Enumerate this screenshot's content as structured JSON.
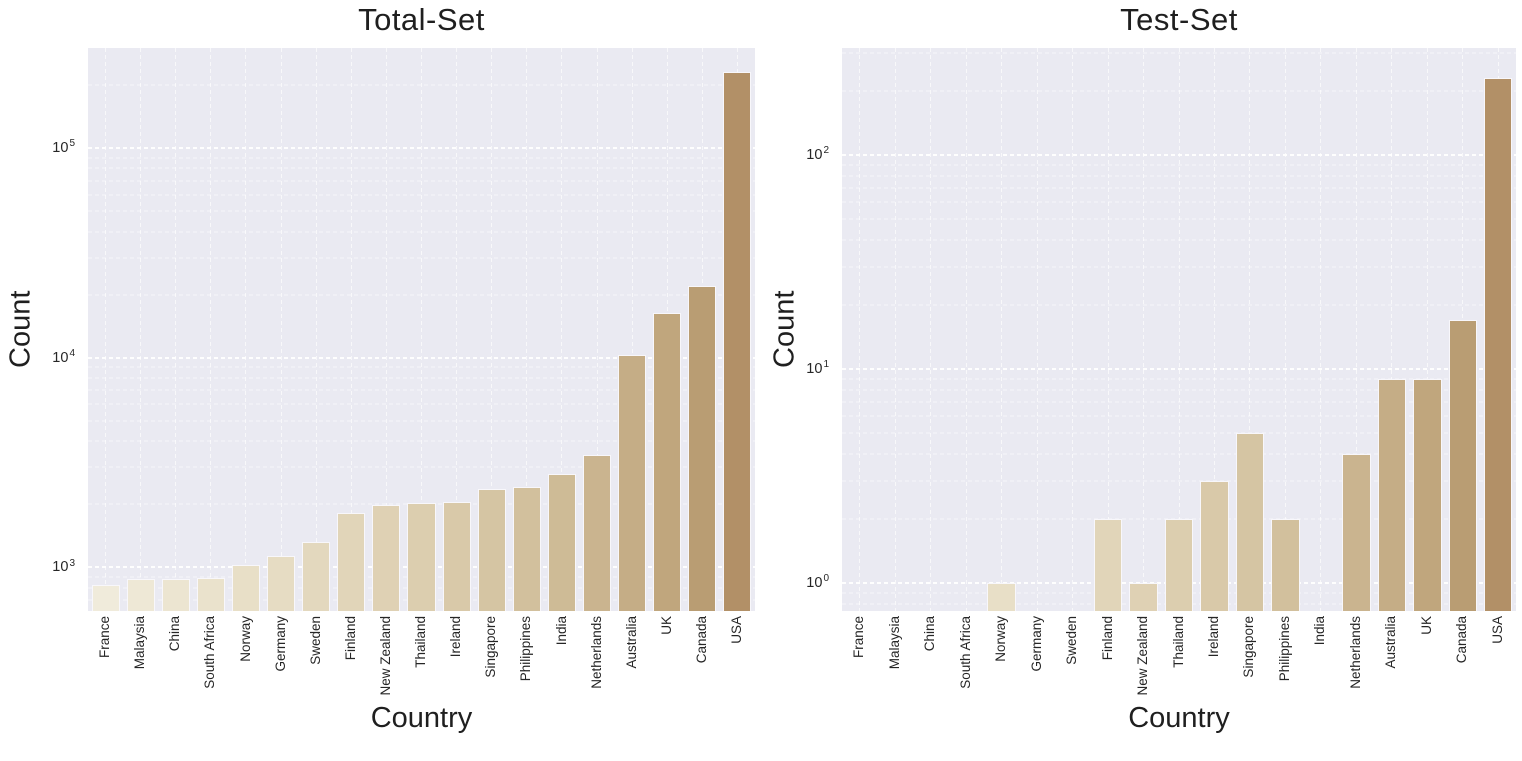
{
  "chart_data": [
    {
      "type": "bar",
      "title": "Total-Set",
      "xlabel": "Country",
      "ylabel": "Count",
      "yscale": "log",
      "ylim": [
        620,
        300000
      ],
      "grid": {
        "horizontal_major": true,
        "horizontal_minor": true,
        "vertical": true,
        "color": "#ffffff",
        "style": "dashed"
      },
      "legend": null,
      "yticks": [
        {
          "value": 1000,
          "base": "10",
          "exp": "3"
        },
        {
          "value": 10000,
          "base": "10",
          "exp": "4"
        },
        {
          "value": 100000,
          "base": "10",
          "exp": "5"
        }
      ],
      "categories": [
        "France",
        "Malaysia",
        "China",
        "South Africa",
        "Norway",
        "Germany",
        "Sweden",
        "Finland",
        "New Zealand",
        "Thailand",
        "Ireland",
        "Singapore",
        "Philippines",
        "India",
        "Netherlands",
        "Australia",
        "UK",
        "Canada",
        "USA"
      ],
      "values": [
        825,
        880,
        885,
        895,
        1030,
        1140,
        1320,
        1820,
        1990,
        2020,
        2060,
        2380,
        2420,
        2790,
        3430,
        10300,
        16400,
        22000,
        230000
      ]
    },
    {
      "type": "bar",
      "title": "Test-Set",
      "xlabel": "Country",
      "ylabel": "Count",
      "yscale": "log",
      "ylim": [
        0.74,
        316
      ],
      "grid": {
        "horizontal_major": true,
        "horizontal_minor": true,
        "vertical": true,
        "color": "#ffffff",
        "style": "dashed"
      },
      "legend": null,
      "yticks": [
        {
          "value": 1,
          "base": "10",
          "exp": "0"
        },
        {
          "value": 10,
          "base": "10",
          "exp": "1"
        },
        {
          "value": 100,
          "base": "10",
          "exp": "2"
        }
      ],
      "categories": [
        "France",
        "Malaysia",
        "China",
        "South Africa",
        "Norway",
        "Germany",
        "Sweden",
        "Finland",
        "New Zealand",
        "Thailand",
        "Ireland",
        "Singapore",
        "Philippines",
        "India",
        "Netherlands",
        "Australia",
        "UK",
        "Canada",
        "USA"
      ],
      "values": [
        0,
        0,
        0,
        0,
        1,
        0,
        0,
        2,
        1,
        2,
        3,
        5,
        2,
        0,
        4,
        9,
        9,
        17,
        230
      ]
    }
  ],
  "style": {
    "figure_bg": "#ffffff",
    "plot_bg": "#eaeaf2",
    "text_color": "#262626",
    "grid_color": "#ffffff",
    "bar_edge_color": "#f8f7fb",
    "bar_colors": [
      "#f0ebdb",
      "#eee8d6",
      "#ece5d1",
      "#eae2cc",
      "#e8dfc7",
      "#e6dcc3",
      "#e3d8be",
      "#e1d5b9",
      "#dfd1b4",
      "#dcceaf",
      "#d9c9a9",
      "#d5c5a3",
      "#d2c09d",
      "#cebb96",
      "#cab48f",
      "#c5ad86",
      "#c0a67d",
      "#b99d73",
      "#b29067"
    ]
  }
}
